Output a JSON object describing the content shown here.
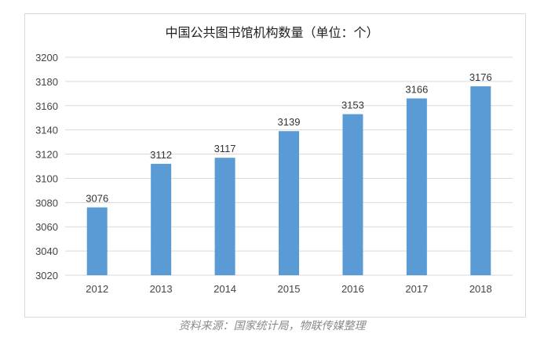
{
  "chart_data": {
    "type": "bar",
    "title": "中国公共图书馆机构数量（单位：个）",
    "categories": [
      "2012",
      "2013",
      "2014",
      "2015",
      "2016",
      "2017",
      "2018"
    ],
    "values": [
      3076,
      3112,
      3117,
      3139,
      3153,
      3166,
      3176
    ],
    "ylim": [
      3020,
      3200
    ],
    "yticks": [
      3020,
      3040,
      3060,
      3080,
      3100,
      3120,
      3140,
      3160,
      3180,
      3200
    ],
    "grid": true,
    "bar_color": "#5b9bd5",
    "xlabel": "",
    "ylabel": ""
  },
  "source": "资料来源：国家统计局，物联传媒整理"
}
